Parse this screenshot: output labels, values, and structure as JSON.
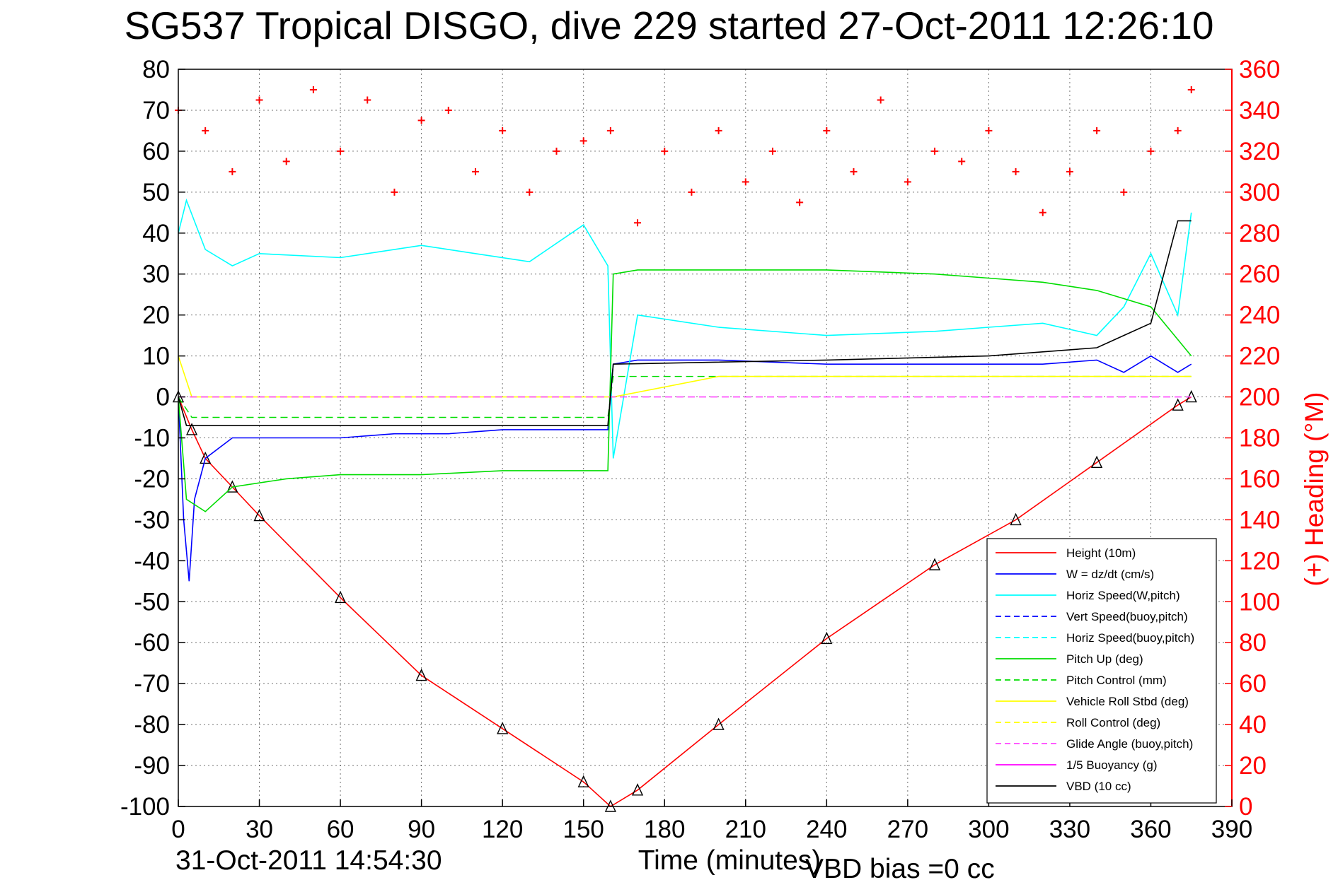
{
  "page": {
    "title": "SG537 Tropical DISGO, dive 229 started 27-Oct-2011 12:26:10",
    "footer_date": "31-Oct-2011 14:54:30",
    "footer_vbd": "VBD bias =0 cc"
  },
  "colors": {
    "height": "#ff0000",
    "w": "#0000ff",
    "horiz_speed": "#00ffff",
    "pitch": "#00dd00",
    "roll": "#ffff00",
    "glide": "#ff44ff",
    "buoyancy": "#ff00ff",
    "vbd": "#000000",
    "heading": "#ff0000"
  },
  "chart_data": {
    "type": "line",
    "xlabel": "Time (minutes)",
    "ylabel_right": "(+) Heading (°M)",
    "xlim": [
      0,
      390
    ],
    "ylim_left": [
      -100,
      80
    ],
    "ylim_right": [
      0,
      360
    ],
    "x_ticks": [
      0,
      30,
      60,
      90,
      120,
      150,
      180,
      210,
      240,
      270,
      300,
      330,
      360,
      390
    ],
    "y_ticks_left": [
      80,
      70,
      60,
      50,
      40,
      30,
      20,
      10,
      0,
      -10,
      -20,
      -30,
      -40,
      -50,
      -60,
      -70,
      -80,
      -90,
      -100
    ],
    "y_ticks_right": [
      360,
      340,
      320,
      300,
      280,
      260,
      240,
      220,
      200,
      180,
      160,
      140,
      120,
      100,
      80,
      60,
      40,
      20,
      0
    ],
    "grid": true,
    "legend_position": "bottom-right",
    "legend": [
      "Height (10m)",
      "W = dz/dt (cm/s)",
      "Horiz Speed(W,pitch)",
      "Vert Speed(buoy,pitch)",
      "Horiz Speed(buoy,pitch)",
      "Pitch Up (deg)",
      "Pitch Control (mm)",
      "Vehicle Roll Stbd (deg)",
      "Roll Control (deg)",
      "Glide Angle (buoy,pitch)",
      "1/5 Buoyancy (g)",
      "VBD (10 cc)"
    ],
    "series": [
      {
        "name": "Height (10m)",
        "x": [
          0,
          5,
          10,
          20,
          30,
          60,
          90,
          120,
          150,
          160,
          170,
          200,
          240,
          280,
          310,
          340,
          370,
          375
        ],
        "y": [
          0,
          -8,
          -15,
          -22,
          -29,
          -49,
          -68,
          -81,
          -94,
          -100,
          -96,
          -80,
          -59,
          -41,
          -30,
          -16,
          -2,
          0
        ]
      },
      {
        "name": "W = dz/dt (cm/s)",
        "x": [
          0,
          2,
          4,
          6,
          10,
          20,
          40,
          60,
          80,
          100,
          120,
          140,
          159,
          161,
          170,
          200,
          240,
          280,
          320,
          340,
          350,
          360,
          370,
          375
        ],
        "y": [
          0,
          -30,
          -45,
          -25,
          -15,
          -10,
          -10,
          -10,
          -9,
          -9,
          -8,
          -8,
          -8,
          8,
          9,
          9,
          8,
          8,
          8,
          9,
          6,
          10,
          6,
          8
        ]
      },
      {
        "name": "Horiz Speed(W,pitch)",
        "x": [
          0,
          3,
          10,
          20,
          30,
          60,
          90,
          110,
          130,
          150,
          159,
          161,
          170,
          200,
          240,
          280,
          300,
          320,
          340,
          350,
          360,
          370,
          375
        ],
        "y": [
          40,
          48,
          36,
          32,
          35,
          34,
          37,
          35,
          33,
          42,
          32,
          -15,
          20,
          17,
          15,
          16,
          17,
          18,
          15,
          22,
          35,
          20,
          45
        ]
      },
      {
        "name": "Pitch Up (deg)",
        "x": [
          0,
          3,
          10,
          20,
          40,
          60,
          90,
          120,
          150,
          159,
          161,
          170,
          200,
          240,
          280,
          300,
          320,
          340,
          360,
          370,
          375
        ],
        "y": [
          0,
          -25,
          -28,
          -22,
          -20,
          -19,
          -19,
          -18,
          -18,
          -18,
          30,
          31,
          31,
          31,
          30,
          29,
          28,
          26,
          22,
          14,
          10
        ]
      },
      {
        "name": "Pitch Control (mm)",
        "x": [
          0,
          5,
          159,
          161,
          375
        ],
        "y": [
          0,
          -5,
          -5,
          5,
          5
        ]
      },
      {
        "name": "Vehicle Roll Stbd (deg)",
        "x": [
          0,
          5,
          50,
          100,
          150,
          159,
          161,
          200,
          260,
          300,
          340,
          375
        ],
        "y": [
          10,
          0,
          0,
          0,
          0,
          0,
          0,
          5,
          5,
          5,
          5,
          5
        ]
      },
      {
        "name": "Glide Angle (buoy,pitch)",
        "x": [
          0,
          375
        ],
        "y": [
          0,
          0
        ]
      },
      {
        "name": "VBD (10 cc)",
        "x": [
          0,
          3,
          159,
          161,
          240,
          300,
          340,
          350,
          360,
          370,
          375
        ],
        "y": [
          0,
          -7,
          -7,
          8,
          9,
          10,
          12,
          15,
          18,
          43,
          43
        ]
      },
      {
        "name": "(+) Heading (°M)",
        "axis": "right",
        "x": [
          0,
          10,
          20,
          30,
          40,
          50,
          60,
          70,
          80,
          90,
          100,
          110,
          120,
          130,
          140,
          150,
          160,
          170,
          180,
          190,
          200,
          210,
          220,
          230,
          240,
          250,
          260,
          270,
          280,
          290,
          300,
          310,
          320,
          330,
          340,
          350,
          360,
          370,
          375
        ],
        "y": [
          340,
          330,
          310,
          345,
          315,
          350,
          320,
          345,
          300,
          335,
          340,
          310,
          330,
          300,
          320,
          325,
          330,
          285,
          320,
          300,
          330,
          305,
          320,
          295,
          330,
          310,
          345,
          305,
          320,
          315,
          330,
          310,
          290,
          310,
          330,
          300,
          320,
          330,
          350
        ]
      }
    ]
  }
}
